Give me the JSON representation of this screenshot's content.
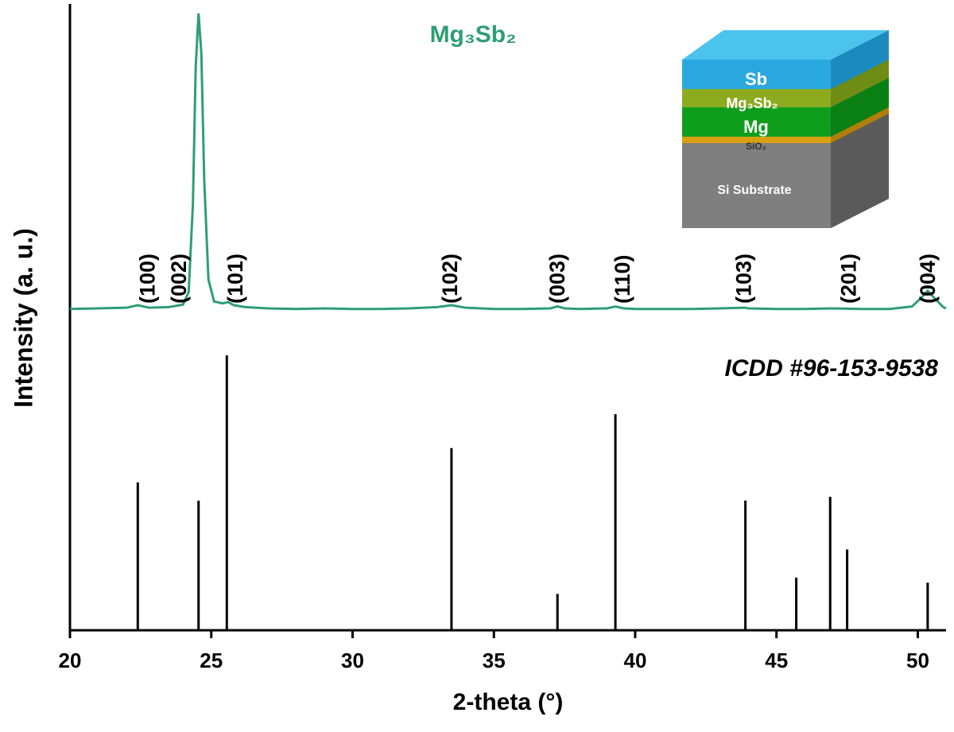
{
  "chart_data": {
    "type": "line",
    "x_label": "2-theta (°)",
    "y_label": "Intensity (a. u.)",
    "xlim": [
      20,
      51
    ],
    "xticks": [
      20,
      25,
      30,
      35,
      40,
      45,
      50
    ],
    "ylim": [
      0,
      100
    ],
    "series": [
      {
        "name": "Mg₃Sb₂",
        "color": "#2e9e74",
        "x": [
          20,
          21,
          22,
          22.4,
          22.8,
          23.5,
          24.0,
          24.2,
          24.35,
          24.45,
          24.55,
          24.65,
          24.75,
          24.9,
          25.1,
          25.4,
          25.6,
          25.8,
          26.2,
          27,
          28,
          29,
          30,
          31,
          32,
          33,
          33.5,
          34,
          35,
          36,
          37,
          37.25,
          37.5,
          38,
          39,
          39.3,
          39.6,
          40,
          41,
          42,
          43,
          43.9,
          44,
          45,
          46,
          47,
          48,
          49,
          49.8,
          50.1,
          50.35,
          50.6,
          50.9,
          51
        ],
        "values": [
          51.3,
          51.4,
          51.5,
          51.9,
          51.5,
          51.6,
          52,
          54,
          68,
          90,
          98.5,
          92,
          72,
          56,
          52.5,
          52.2,
          52.4,
          51.9,
          51.6,
          51.4,
          51.3,
          51.4,
          51.3,
          51.3,
          51.4,
          51.6,
          51.9,
          51.5,
          51.3,
          51.3,
          51.4,
          51.7,
          51.4,
          51.3,
          51.4,
          51.7,
          51.4,
          51.3,
          51.3,
          51.3,
          51.4,
          51.5,
          51.4,
          51.3,
          51.3,
          51.4,
          51.3,
          51.3,
          51.7,
          53,
          54.2,
          53,
          51.6,
          51.4
        ]
      }
    ],
    "reference": {
      "name": "ICDD #96-153-9538",
      "color": "#000000",
      "x": [
        22.4,
        24.55,
        25.55,
        33.5,
        37.25,
        39.3,
        43.9,
        45.7,
        46.9,
        47.5,
        50.35
      ],
      "values": [
        23.6,
        20.7,
        43.9,
        29.1,
        5.8,
        34.5,
        20.7,
        8.4,
        21.3,
        12.9,
        7.6
      ]
    },
    "peak_labels": [
      {
        "label": "(100)",
        "x": 22.8
      },
      {
        "label": "(002)",
        "x": 23.9
      },
      {
        "label": "(101)",
        "x": 25.9
      },
      {
        "label": "(102)",
        "x": 33.5
      },
      {
        "label": "(003)",
        "x": 37.3
      },
      {
        "label": "(110)",
        "x": 39.6
      },
      {
        "label": "(103)",
        "x": 43.9
      },
      {
        "label": "(201)",
        "x": 47.6
      },
      {
        "label": "(004)",
        "x": 50.4
      }
    ]
  },
  "inset": {
    "layers": [
      "Sb",
      "Mg₃Sb₂",
      "Mg",
      "SiO₂",
      "Si Substrate"
    ]
  }
}
